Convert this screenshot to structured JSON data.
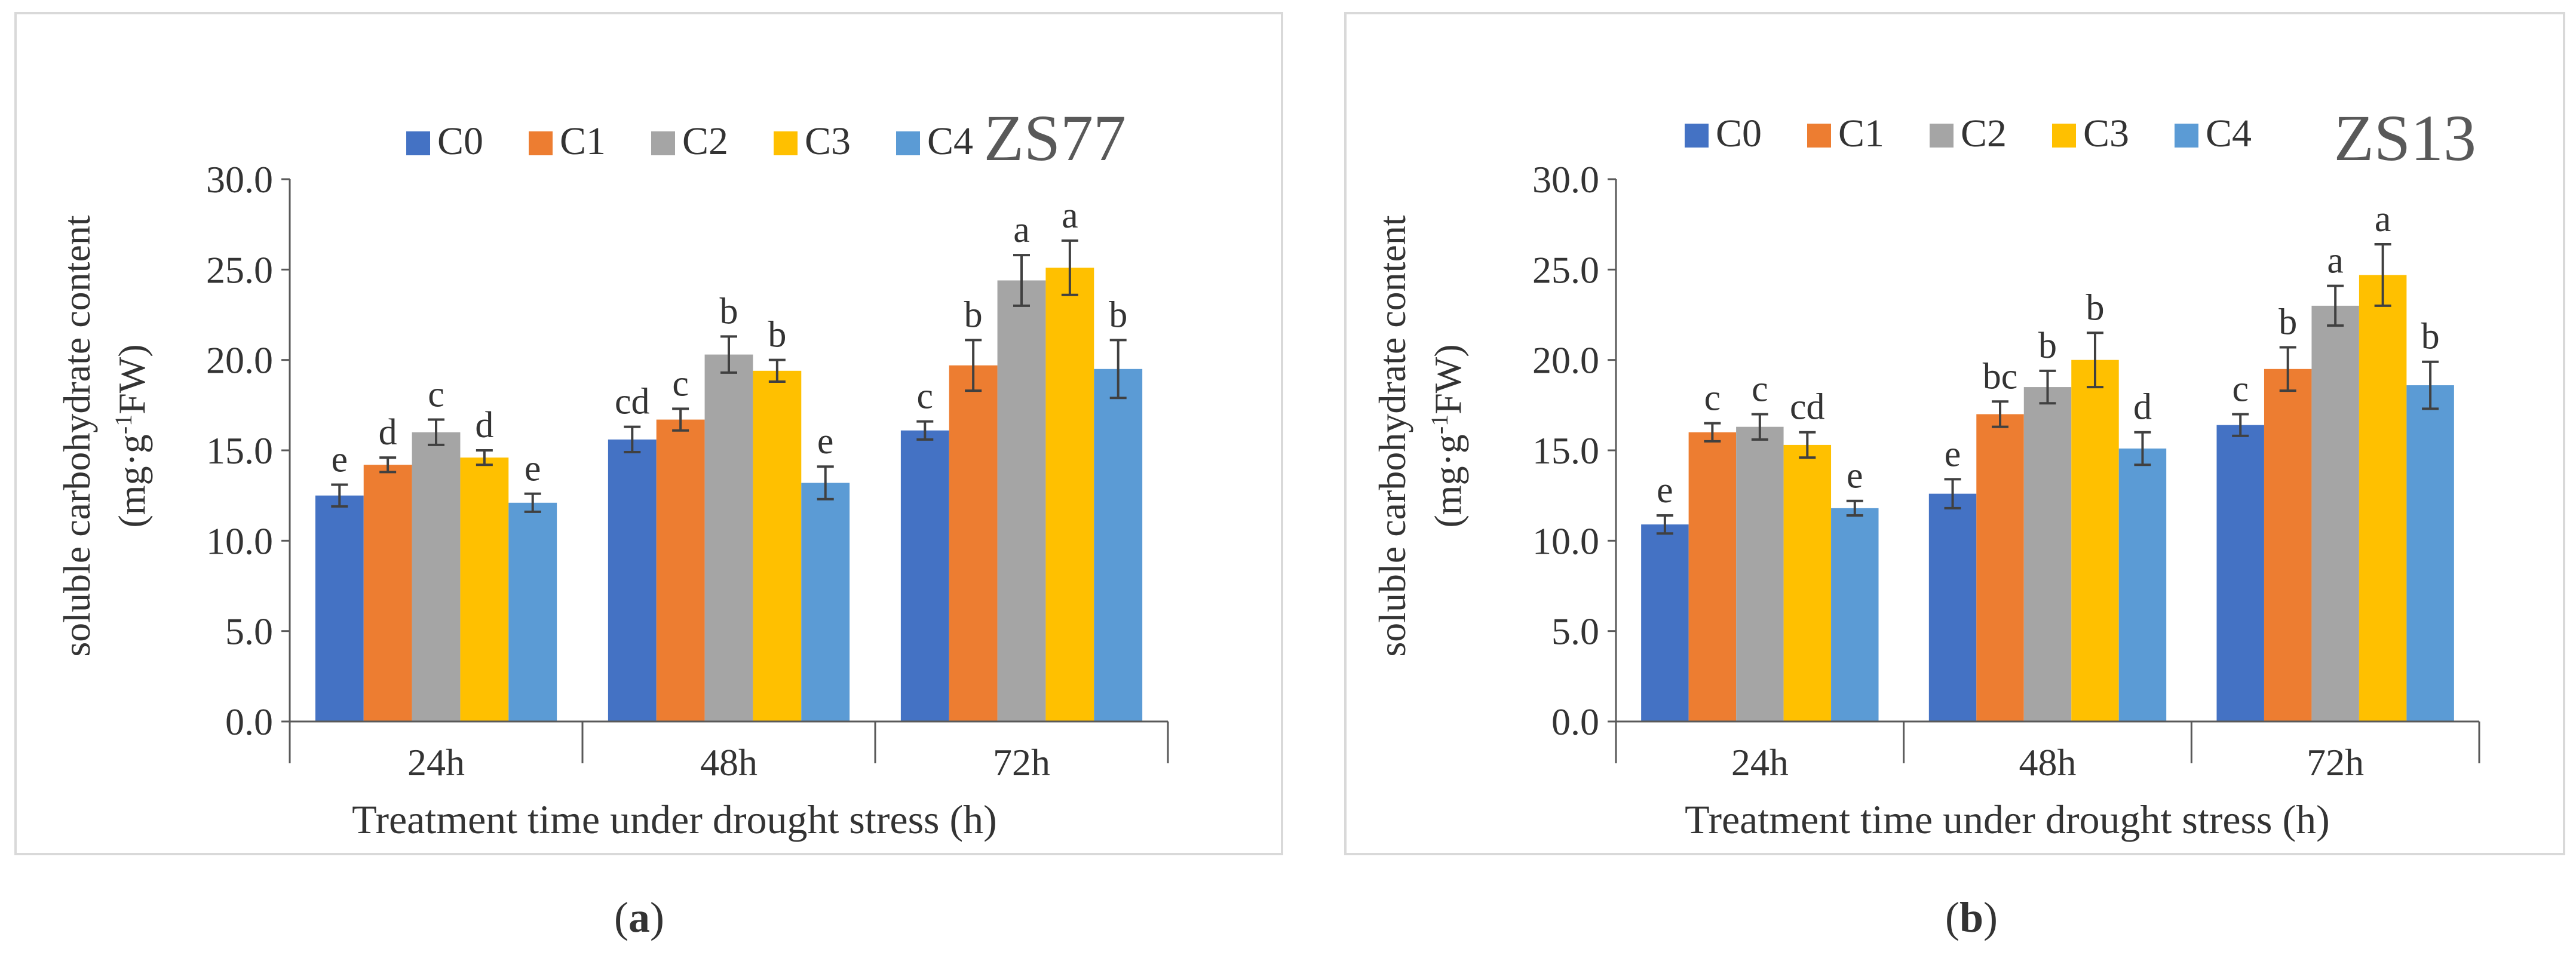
{
  "figure": {
    "panel_labels": [
      "a",
      "b"
    ]
  },
  "chart_data": [
    {
      "type": "bar",
      "title": "ZS77",
      "xlabel": "Treatment time under drought stress (h)",
      "ylabel": {
        "line1": "soluble carbohydrate content",
        "line2_prefix": "(mg·g",
        "line2_superscript": "-1",
        "line2_suffix": "FW)"
      },
      "ylim": [
        0,
        30
      ],
      "yticks": [
        "0.0",
        "5.0",
        "10.0",
        "15.0",
        "20.0",
        "25.0",
        "30.0"
      ],
      "categories": [
        "24h",
        "48h",
        "72h"
      ],
      "legend_position": "top",
      "series": [
        {
          "name": "C0",
          "color": "#4472C4",
          "values": [
            12.5,
            15.6,
            16.1
          ],
          "errors": [
            0.6,
            0.7,
            0.5
          ],
          "letters": [
            "e",
            "cd",
            "c"
          ]
        },
        {
          "name": "C1",
          "color": "#ED7D31",
          "values": [
            14.2,
            16.7,
            19.7
          ],
          "errors": [
            0.4,
            0.6,
            1.4
          ],
          "letters": [
            "d",
            "c",
            "b"
          ]
        },
        {
          "name": "C2",
          "color": "#A5A5A5",
          "values": [
            16.0,
            20.3,
            24.4
          ],
          "errors": [
            0.7,
            1.0,
            1.4
          ],
          "letters": [
            "c",
            "b",
            "a"
          ]
        },
        {
          "name": "C3",
          "color": "#FFC000",
          "values": [
            14.6,
            19.4,
            25.1
          ],
          "errors": [
            0.4,
            0.6,
            1.5
          ],
          "letters": [
            "d",
            "b",
            "a"
          ]
        },
        {
          "name": "C4",
          "color": "#5B9BD5",
          "values": [
            12.1,
            13.2,
            19.5
          ],
          "errors": [
            0.5,
            0.9,
            1.6
          ],
          "letters": [
            "e",
            "e",
            "b"
          ]
        }
      ]
    },
    {
      "type": "bar",
      "title": "ZS13",
      "xlabel": "Treatment time under drought stress (h)",
      "ylabel": {
        "line1": "soluble carbohydrate content",
        "line2_prefix": "(mg·g",
        "line2_superscript": "-1",
        "line2_suffix": "FW)"
      },
      "ylim": [
        0,
        30
      ],
      "yticks": [
        "0.0",
        "5.0",
        "10.0",
        "15.0",
        "20.0",
        "25.0",
        "30.0"
      ],
      "categories": [
        "24h",
        "48h",
        "72h"
      ],
      "legend_position": "top",
      "series": [
        {
          "name": "C0",
          "color": "#4472C4",
          "values": [
            10.9,
            12.6,
            16.4
          ],
          "errors": [
            0.5,
            0.8,
            0.6
          ],
          "letters": [
            "e",
            "e",
            "c"
          ]
        },
        {
          "name": "C1",
          "color": "#ED7D31",
          "values": [
            16.0,
            17.0,
            19.5
          ],
          "errors": [
            0.5,
            0.7,
            1.2
          ],
          "letters": [
            "c",
            "bc",
            "b"
          ]
        },
        {
          "name": "C2",
          "color": "#A5A5A5",
          "values": [
            16.3,
            18.5,
            23.0
          ],
          "errors": [
            0.7,
            0.9,
            1.1
          ],
          "letters": [
            "c",
            "b",
            "a"
          ]
        },
        {
          "name": "C3",
          "color": "#FFC000",
          "values": [
            15.3,
            20.0,
            24.7
          ],
          "errors": [
            0.7,
            1.5,
            1.7
          ],
          "letters": [
            "cd",
            "b",
            "a"
          ]
        },
        {
          "name": "C4",
          "color": "#5B9BD5",
          "values": [
            11.8,
            15.1,
            18.6
          ],
          "errors": [
            0.4,
            0.9,
            1.3
          ],
          "letters": [
            "e",
            "d",
            "b"
          ]
        }
      ]
    }
  ]
}
